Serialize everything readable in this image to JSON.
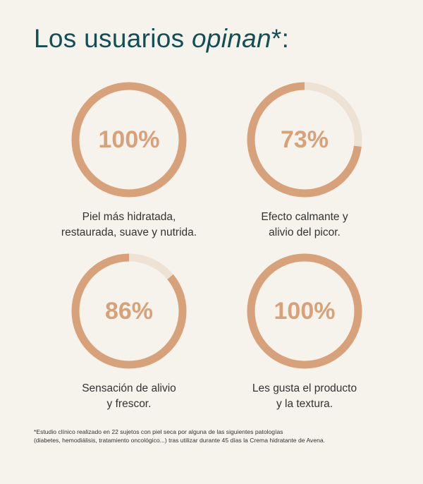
{
  "title": {
    "main": "Los usuarios ",
    "emphasis": "opinan",
    "suffix": "*:"
  },
  "colors": {
    "title": "#124f55",
    "ring": "#d7a17a",
    "track": "#ede2d4",
    "background": "#f6f2ec"
  },
  "stats": [
    {
      "value": 100,
      "label": "100%",
      "caption": [
        "Piel más hidratada,",
        "restaurada, suave y nutrida."
      ]
    },
    {
      "value": 73,
      "label": "73%",
      "caption": [
        "Efecto calmante y",
        "alivio del picor."
      ]
    },
    {
      "value": 86,
      "label": "86%",
      "caption": [
        "Sensación de alivio",
        "y frescor."
      ]
    },
    {
      "value": 100,
      "label": "100%",
      "caption": [
        "Les gusta el producto",
        "y la textura."
      ]
    }
  ],
  "footnote": [
    "*Estudio clínico realizado en 22 sujetos con piel seca por alguna de las siguientes patologías",
    "(diabetes, hemodiálisis, tratamiento oncológico...) tras utilizar durante 45 días la Crema hidratante de Avena."
  ]
}
